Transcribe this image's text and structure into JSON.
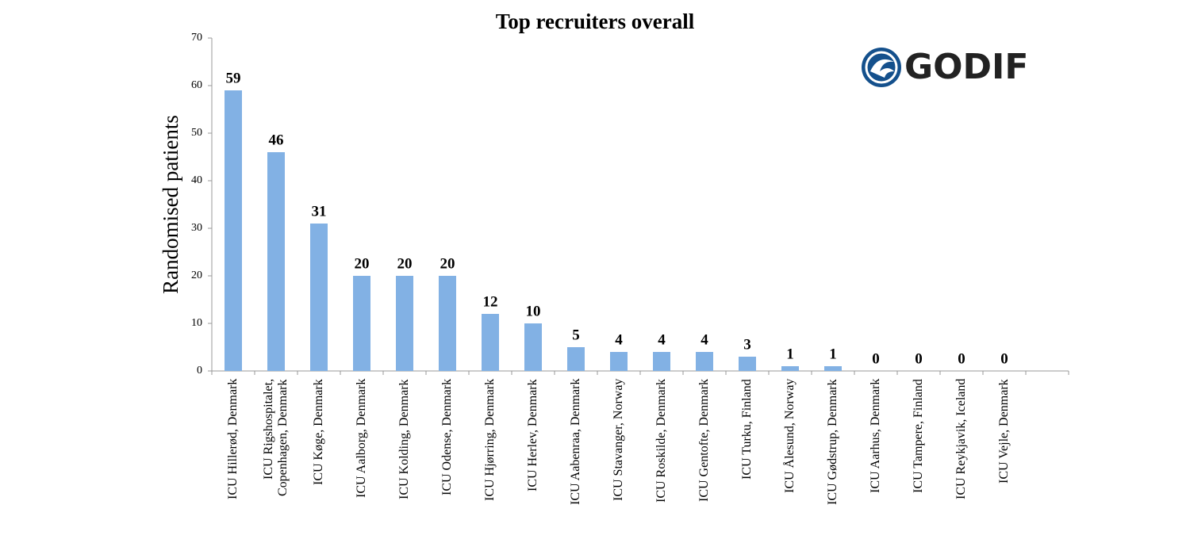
{
  "chart_data": {
    "type": "bar",
    "title": "Top recruiters overall",
    "ylabel": "Randomised patients",
    "logo": "GODIF",
    "categories": [
      "ICU Hillerød, Denmark",
      "ICU Rigshospitalet, Copenhagen, Denmark",
      "ICU Køge, Denmark",
      "ICU Aalborg, Denmark",
      "ICU Kolding, Denmark",
      "ICU Odense, Denmark",
      "ICU Hjørring, Denmark",
      "ICU Herlev, Denmark",
      "ICU Aabenraa, Denmark",
      "ICU Stavanger, Norway",
      "ICU Roskilde, Denmark",
      "ICU Gentofte, Denmark",
      "ICU Turku, Finland",
      "ICU Ålesund, Norway",
      "ICU Gødstrup, Denmark",
      "ICU Aarhus, Denmark",
      "ICU Tampere, Finland",
      "ICU Reykjavik, Iceland",
      "ICU Vejle, Denmark",
      null
    ],
    "values": [
      59,
      46,
      31,
      20,
      20,
      20,
      12,
      10,
      5,
      4,
      4,
      4,
      3,
      1,
      1,
      0,
      0,
      0,
      0,
      null
    ],
    "color": "#82b1e4",
    "ylim": [
      0,
      70
    ],
    "yticks": [
      0,
      10,
      20,
      30,
      40,
      50,
      60,
      70
    ]
  }
}
